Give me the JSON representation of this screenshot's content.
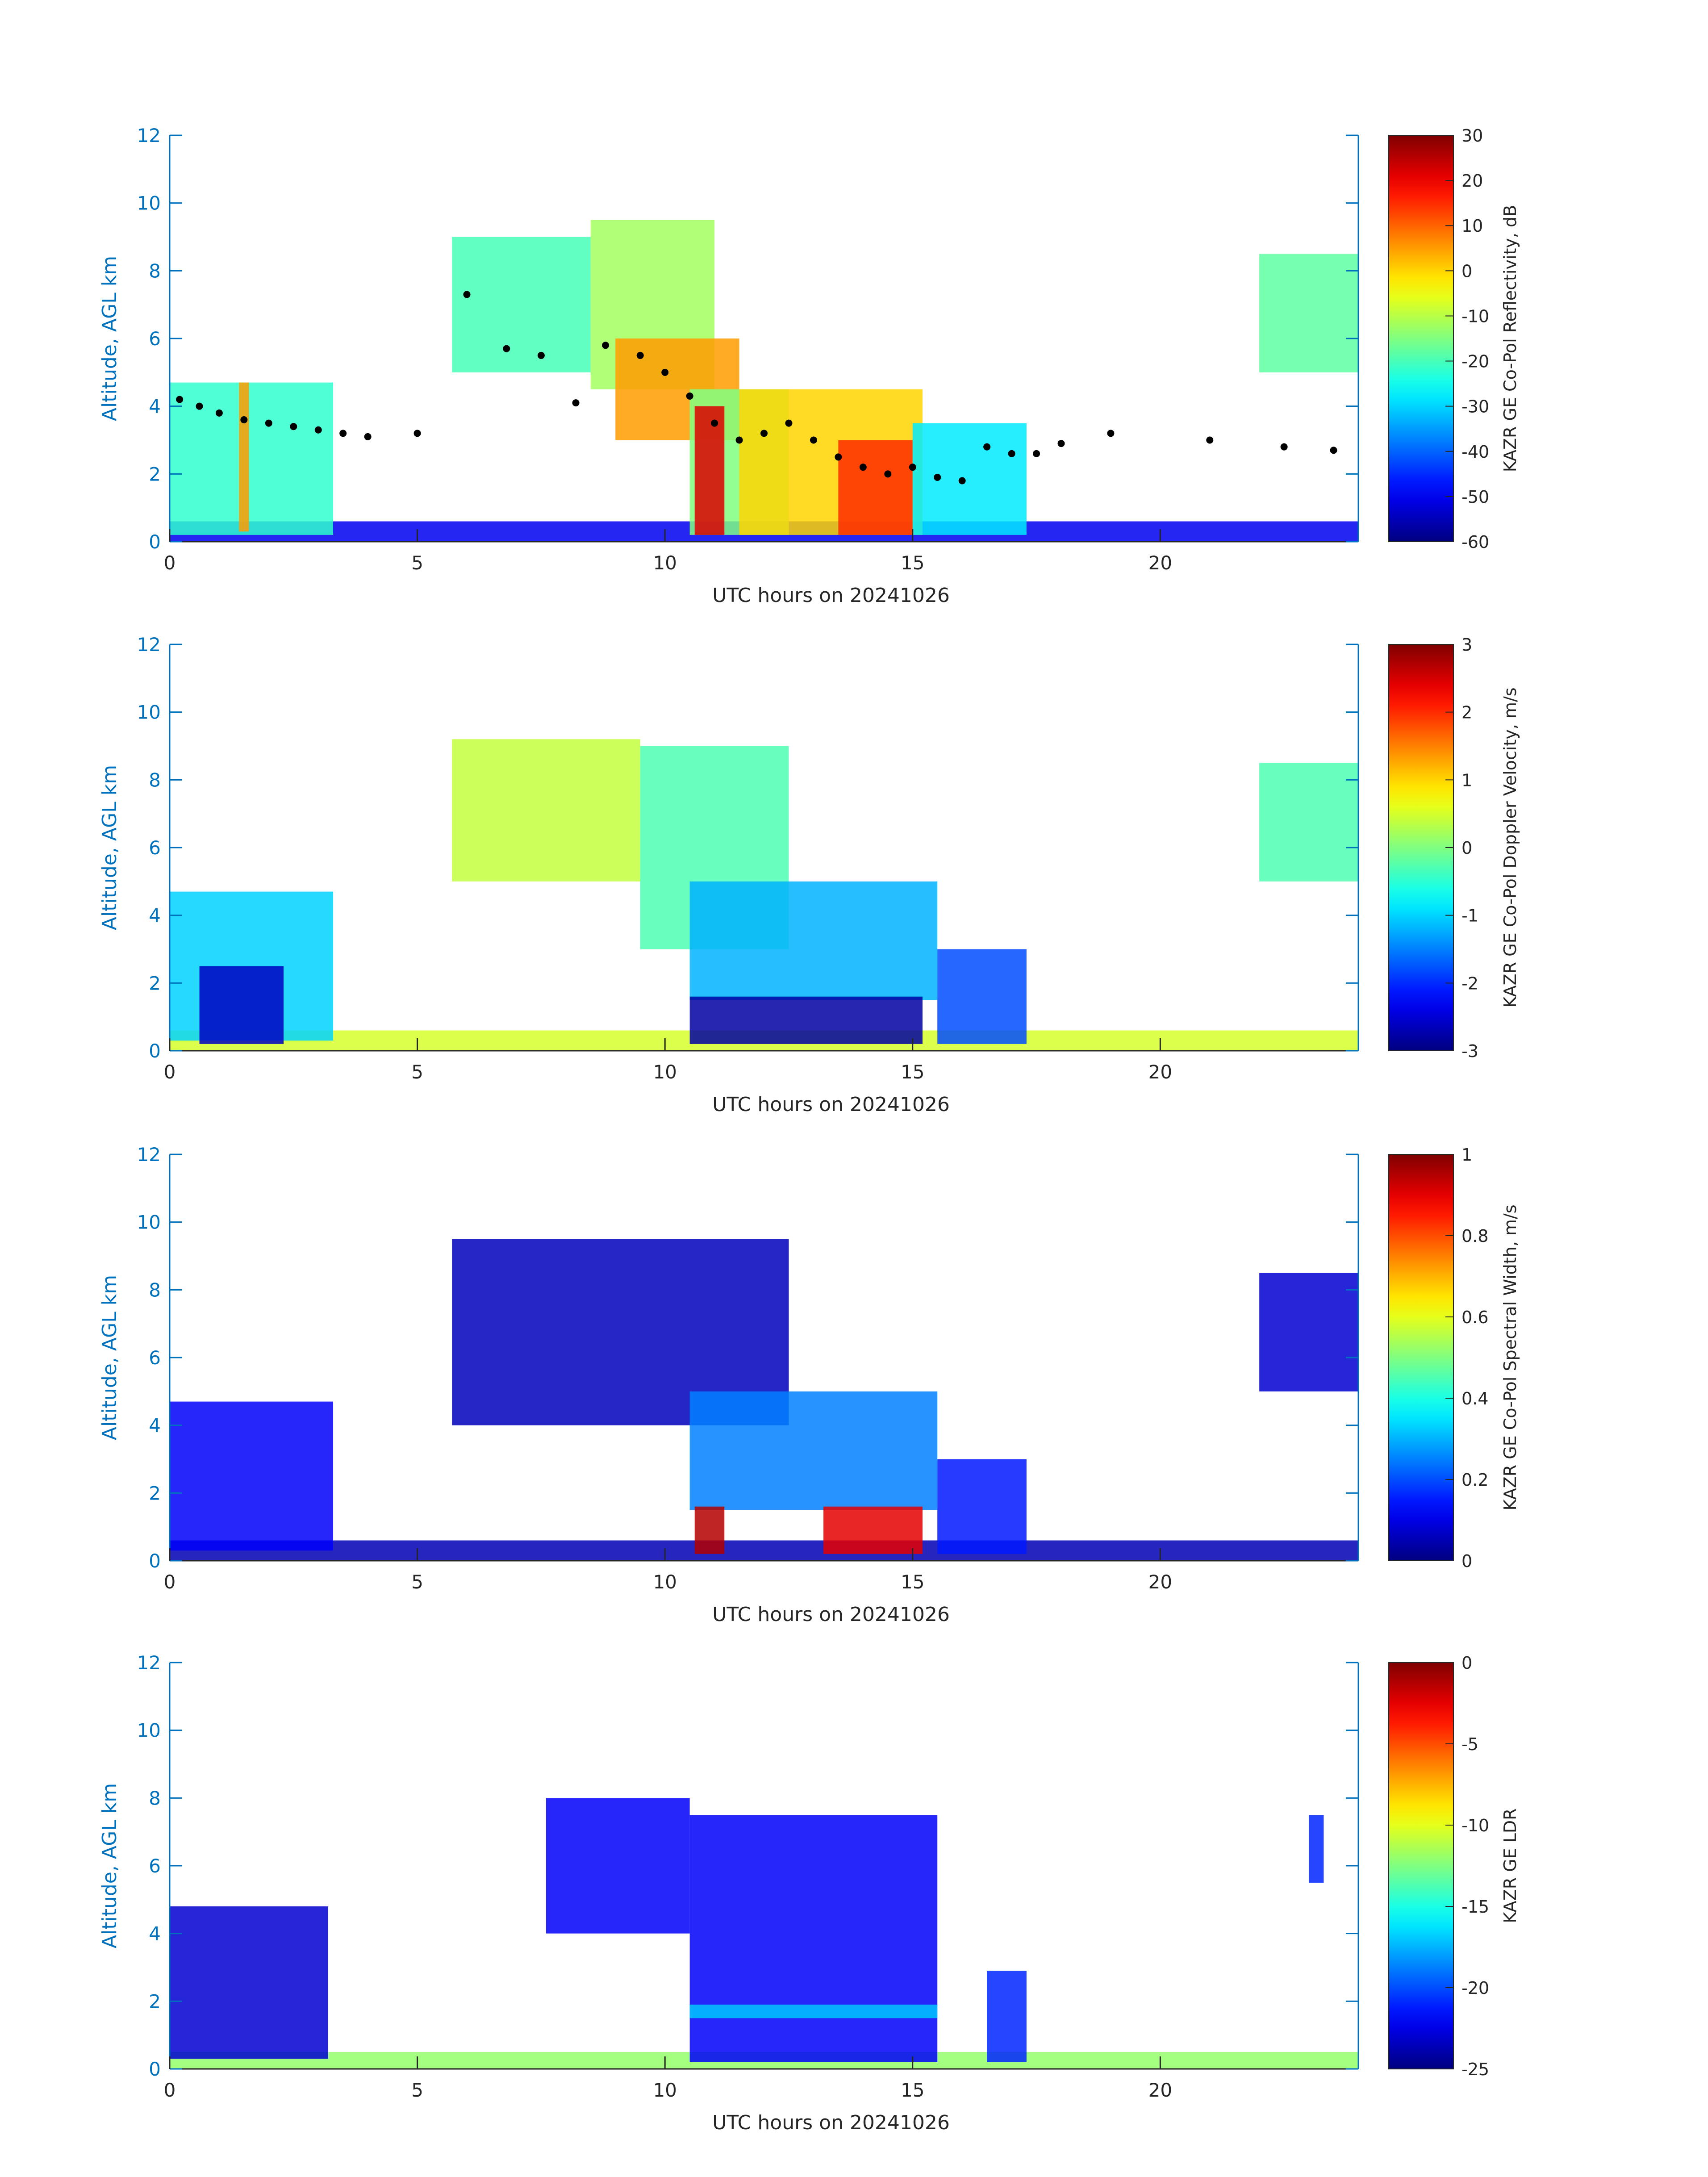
{
  "figure": {
    "axis_color": "#0072bd",
    "text_color": "#262626",
    "colormap": "jet"
  },
  "chart_data": [
    {
      "type": "heatmap",
      "title": "",
      "xlabel": "UTC hours on 20241026",
      "ylabel": "Altitude, AGL km",
      "xlim": [
        0,
        24
      ],
      "ylim": [
        0,
        12
      ],
      "xticks": [
        "0",
        "5",
        "10",
        "15",
        "20"
      ],
      "yticks": [
        "0",
        "2",
        "4",
        "6",
        "8",
        "10",
        "12"
      ],
      "colorbar_label": "KAZR GE Co-Pol Reflectivity, dB",
      "colorbar_range": [
        -60,
        30
      ],
      "colorbar_ticks": [
        "-60",
        "-50",
        "-40",
        "-30",
        "-20",
        "-10",
        "0",
        "10",
        "20",
        "30"
      ],
      "overlay": "cloud-base-points",
      "regions": [
        {
          "t0": 0.0,
          "t1": 24.0,
          "z0": 0.0,
          "z1": 0.6,
          "v": -50
        },
        {
          "t0": 0.0,
          "t1": 3.3,
          "z0": 0.2,
          "z1": 4.7,
          "v": -22
        },
        {
          "t0": 1.4,
          "t1": 1.6,
          "z0": 0.3,
          "z1": 4.7,
          "v": 5
        },
        {
          "t0": 5.7,
          "t1": 8.5,
          "z0": 5.0,
          "z1": 9.0,
          "v": -20
        },
        {
          "t0": 8.5,
          "t1": 11.0,
          "z0": 4.5,
          "z1": 9.5,
          "v": -12
        },
        {
          "t0": 9.0,
          "t1": 11.5,
          "z0": 3.0,
          "z1": 6.0,
          "v": 5
        },
        {
          "t0": 10.5,
          "t1": 12.5,
          "z0": 0.2,
          "z1": 4.5,
          "v": -15
        },
        {
          "t0": 10.6,
          "t1": 11.2,
          "z0": 0.2,
          "z1": 4.0,
          "v": 22
        },
        {
          "t0": 11.5,
          "t1": 15.2,
          "z0": 0.2,
          "z1": 4.5,
          "v": 0
        },
        {
          "t0": 13.5,
          "t1": 15.0,
          "z0": 0.2,
          "z1": 3.0,
          "v": 15
        },
        {
          "t0": 15.0,
          "t1": 17.3,
          "z0": 0.2,
          "z1": 3.5,
          "v": -28
        },
        {
          "t0": 22.0,
          "t1": 24.0,
          "z0": 5.0,
          "z1": 8.5,
          "v": -18
        }
      ],
      "points": [
        {
          "t": 0.2,
          "z": 4.2
        },
        {
          "t": 0.6,
          "z": 4.0
        },
        {
          "t": 1.0,
          "z": 3.8
        },
        {
          "t": 1.5,
          "z": 3.6
        },
        {
          "t": 2.0,
          "z": 3.5
        },
        {
          "t": 2.5,
          "z": 3.4
        },
        {
          "t": 3.0,
          "z": 3.3
        },
        {
          "t": 3.5,
          "z": 3.2
        },
        {
          "t": 4.0,
          "z": 3.1
        },
        {
          "t": 5.0,
          "z": 3.2
        },
        {
          "t": 6.0,
          "z": 7.3
        },
        {
          "t": 6.8,
          "z": 5.7
        },
        {
          "t": 7.5,
          "z": 5.5
        },
        {
          "t": 8.2,
          "z": 4.1
        },
        {
          "t": 8.8,
          "z": 5.8
        },
        {
          "t": 9.5,
          "z": 5.5
        },
        {
          "t": 10.0,
          "z": 5.0
        },
        {
          "t": 10.5,
          "z": 4.3
        },
        {
          "t": 11.0,
          "z": 3.5
        },
        {
          "t": 11.5,
          "z": 3.0
        },
        {
          "t": 12.0,
          "z": 3.2
        },
        {
          "t": 12.5,
          "z": 3.5
        },
        {
          "t": 13.0,
          "z": 3.0
        },
        {
          "t": 13.5,
          "z": 2.5
        },
        {
          "t": 14.0,
          "z": 2.2
        },
        {
          "t": 14.5,
          "z": 2.0
        },
        {
          "t": 15.0,
          "z": 2.2
        },
        {
          "t": 15.5,
          "z": 1.9
        },
        {
          "t": 16.0,
          "z": 1.8
        },
        {
          "t": 16.5,
          "z": 2.8
        },
        {
          "t": 17.0,
          "z": 2.6
        },
        {
          "t": 17.5,
          "z": 2.6
        },
        {
          "t": 18.0,
          "z": 2.9
        },
        {
          "t": 19.0,
          "z": 3.2
        },
        {
          "t": 21.0,
          "z": 3.0
        },
        {
          "t": 22.5,
          "z": 2.8
        },
        {
          "t": 23.5,
          "z": 2.7
        }
      ]
    },
    {
      "type": "heatmap",
      "title": "",
      "xlabel": "UTC hours on 20241026",
      "ylabel": "Altitude, AGL km",
      "xlim": [
        0,
        24
      ],
      "ylim": [
        0,
        12
      ],
      "xticks": [
        "0",
        "5",
        "10",
        "15",
        "20"
      ],
      "yticks": [
        "0",
        "2",
        "4",
        "6",
        "8",
        "10",
        "12"
      ],
      "colorbar_label": "KAZR GE Co-Pol Doppler Velocity, m/s",
      "colorbar_range": [
        -3,
        3
      ],
      "colorbar_ticks": [
        "-3",
        "-2",
        "-1",
        "0",
        "1",
        "2",
        "3"
      ],
      "regions": [
        {
          "t0": 0.0,
          "t1": 24.0,
          "z0": 0.0,
          "z1": 0.6,
          "v": 0.5
        },
        {
          "t0": 0.0,
          "t1": 3.3,
          "z0": 0.3,
          "z1": 4.7,
          "v": -1.0
        },
        {
          "t0": 0.6,
          "t1": 2.3,
          "z0": 0.2,
          "z1": 2.5,
          "v": -2.6
        },
        {
          "t0": 5.7,
          "t1": 9.5,
          "z0": 5.0,
          "z1": 9.2,
          "v": 0.4
        },
        {
          "t0": 9.5,
          "t1": 12.5,
          "z0": 3.0,
          "z1": 9.0,
          "v": -0.3
        },
        {
          "t0": 10.5,
          "t1": 15.5,
          "z0": 1.5,
          "z1": 5.0,
          "v": -1.2
        },
        {
          "t0": 10.5,
          "t1": 15.2,
          "z0": 0.2,
          "z1": 1.6,
          "v": -2.8
        },
        {
          "t0": 15.5,
          "t1": 17.3,
          "z0": 0.2,
          "z1": 3.0,
          "v": -1.8
        },
        {
          "t0": 22.0,
          "t1": 24.0,
          "z0": 5.0,
          "z1": 8.5,
          "v": -0.3
        }
      ]
    },
    {
      "type": "heatmap",
      "title": "",
      "xlabel": "UTC hours on 20241026",
      "ylabel": "Altitude, AGL km",
      "xlim": [
        0,
        24
      ],
      "ylim": [
        0,
        12
      ],
      "xticks": [
        "0",
        "5",
        "10",
        "15",
        "20"
      ],
      "yticks": [
        "0",
        "2",
        "4",
        "6",
        "8",
        "10",
        "12"
      ],
      "colorbar_label": "KAZR GE Co-Pol Spectral Width, m/s",
      "colorbar_range": [
        0,
        1
      ],
      "colorbar_ticks": [
        "0",
        "0.2",
        "0.4",
        "0.6",
        "0.8",
        "1"
      ],
      "regions": [
        {
          "t0": 0.0,
          "t1": 24.0,
          "z0": 0.0,
          "z1": 0.6,
          "v": 0.05
        },
        {
          "t0": 0.0,
          "t1": 3.3,
          "z0": 0.3,
          "z1": 4.7,
          "v": 0.12
        },
        {
          "t0": 5.7,
          "t1": 12.5,
          "z0": 4.0,
          "z1": 9.5,
          "v": 0.06
        },
        {
          "t0": 10.5,
          "t1": 15.5,
          "z0": 1.5,
          "z1": 5.0,
          "v": 0.25
        },
        {
          "t0": 10.6,
          "t1": 11.2,
          "z0": 0.2,
          "z1": 1.6,
          "v": 0.95
        },
        {
          "t0": 13.2,
          "t1": 15.2,
          "z0": 0.2,
          "z1": 1.6,
          "v": 0.9
        },
        {
          "t0": 15.5,
          "t1": 17.3,
          "z0": 0.2,
          "z1": 3.0,
          "v": 0.15
        },
        {
          "t0": 22.0,
          "t1": 24.0,
          "z0": 5.0,
          "z1": 8.5,
          "v": 0.08
        }
      ]
    },
    {
      "type": "heatmap",
      "title": "",
      "xlabel": "UTC hours on 20241026",
      "ylabel": "Altitude, AGL km",
      "xlim": [
        0,
        24
      ],
      "ylim": [
        0,
        12
      ],
      "xticks": [
        "0",
        "5",
        "10",
        "15",
        "20"
      ],
      "yticks": [
        "0",
        "2",
        "4",
        "6",
        "8",
        "10",
        "12"
      ],
      "colorbar_label": "KAZR GE LDR",
      "colorbar_range": [
        -25,
        0
      ],
      "colorbar_ticks": [
        "-25",
        "-20",
        "-15",
        "-10",
        "-5",
        "0"
      ],
      "regions": [
        {
          "t0": 0.0,
          "t1": 24.0,
          "z0": 0.0,
          "z1": 0.5,
          "v": -12
        },
        {
          "t0": 0.0,
          "t1": 3.2,
          "z0": 0.3,
          "z1": 4.8,
          "v": -23
        },
        {
          "t0": 7.6,
          "t1": 10.5,
          "z0": 4.0,
          "z1": 8.0,
          "v": -22
        },
        {
          "t0": 10.5,
          "t1": 15.5,
          "z0": 0.2,
          "z1": 7.5,
          "v": -22
        },
        {
          "t0": 10.5,
          "t1": 15.5,
          "z0": 1.5,
          "z1": 1.9,
          "v": -17
        },
        {
          "t0": 16.5,
          "t1": 17.3,
          "z0": 0.2,
          "z1": 2.9,
          "v": -21
        },
        {
          "t0": 23.0,
          "t1": 23.3,
          "z0": 5.5,
          "z1": 7.5,
          "v": -21
        }
      ]
    }
  ]
}
